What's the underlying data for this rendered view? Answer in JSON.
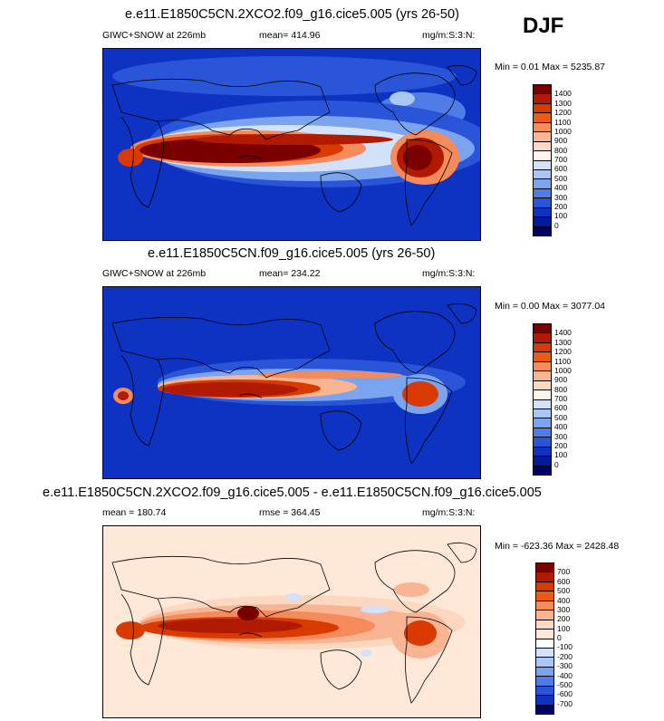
{
  "season": "DJF",
  "panels": [
    {
      "title": "e.e11.E1850C5CN.2XCO2.f09_g16.cice5.005 (yrs 26-50)",
      "left_label": "GIWC+SNOW at 226mb",
      "center_label": "mean= 414.96",
      "right_label": "mg/m:S:3:N:",
      "minmax": "Min =   0.01 Max = 5235.87",
      "colorbar_labels": [
        "1400",
        "1300",
        "1200",
        "1100",
        "1000",
        "900",
        "800",
        "700",
        "600",
        "500",
        "400",
        "300",
        "200",
        "100",
        "0"
      ]
    },
    {
      "title": "e.e11.E1850C5CN.f09_g16.cice5.005 (yrs 26-50)",
      "left_label": "GIWC+SNOW at 226mb",
      "center_label": "mean= 234.22",
      "right_label": "mg/m:S:3:N:",
      "minmax": "Min =   0.00 Max = 3077.04",
      "colorbar_labels": [
        "1400",
        "1300",
        "1200",
        "1100",
        "1000",
        "900",
        "800",
        "700",
        "600",
        "500",
        "400",
        "300",
        "200",
        "100",
        "0"
      ]
    },
    {
      "title": "e.e11.E1850C5CN.2XCO2.f09_g16.cice5.005 - e.e11.E1850C5CN.f09_g16.cice5.005",
      "left_label": "mean = 180.74",
      "center_label": "rmse = 364.45",
      "right_label": "mg/m:S:3:N:",
      "minmax": "Min = -623.36 Max = 2428.48",
      "colorbar_labels": [
        "700",
        "600",
        "500",
        "400",
        "300",
        "200",
        "100",
        "0",
        "-100",
        "-200",
        "-300",
        "-400",
        "-500",
        "-600",
        "-700"
      ]
    }
  ],
  "colors": {
    "abs_scale": [
      "#7a0000",
      "#b01a00",
      "#d83a00",
      "#ee5a14",
      "#f58a5a",
      "#f9b494",
      "#fcd8c0",
      "#fff3ea",
      "#d2e2fa",
      "#a9c7f5",
      "#7ba4ee",
      "#4f7ce6",
      "#2a55d8",
      "#0e32c2",
      "#031a9a",
      "#00006a"
    ],
    "diff_scale": [
      "#7a0000",
      "#b01a00",
      "#d83a00",
      "#ee5a14",
      "#f58a5a",
      "#f9b494",
      "#fcd8c0",
      "#ffe8d8",
      "#ffffff",
      "#d2e2fa",
      "#a9c7f5",
      "#7ba4ee",
      "#4f7ce6",
      "#2a55d8",
      "#0e32c2",
      "#00006a"
    ]
  }
}
